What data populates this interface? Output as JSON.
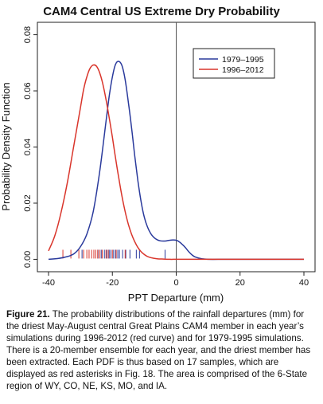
{
  "chart_data": {
    "type": "line",
    "title": "CAM4 Central US Extreme Dry Probability",
    "xlabel": "PPT Departure (mm)",
    "ylabel": "Probability Density Function",
    "xlim": [
      -40,
      40
    ],
    "ylim": [
      -0.003,
      0.083
    ],
    "x_ticks": [
      -40,
      -20,
      0,
      20,
      40
    ],
    "y_ticks": [
      0.0,
      0.02,
      0.04,
      0.06,
      0.08
    ],
    "x_tick_labels": [
      "-40",
      "-20",
      "0",
      "20",
      "40"
    ],
    "y_tick_labels": [
      "0.00",
      "0.02",
      "0.04",
      "0.06",
      "0.08"
    ],
    "vline_x": 0,
    "legend_position": "top-right",
    "series": [
      {
        "name": "1979–1995",
        "color": "#2a3a9c",
        "x": [
          -40,
          -37,
          -34,
          -32,
          -30,
          -28,
          -26,
          -24,
          -22,
          -21,
          -20,
          -19,
          -18,
          -17,
          -16,
          -15,
          -14,
          -13,
          -12,
          -11,
          -10,
          -9,
          -8,
          -7,
          -6,
          -5,
          -4,
          -3,
          -2,
          -1,
          0,
          1,
          2,
          3,
          4,
          5,
          6,
          8,
          10,
          15,
          20,
          30,
          40
        ],
        "y": [
          0.0,
          0.0003,
          0.001,
          0.002,
          0.0045,
          0.009,
          0.017,
          0.031,
          0.049,
          0.058,
          0.065,
          0.0695,
          0.0705,
          0.069,
          0.064,
          0.056,
          0.047,
          0.037,
          0.028,
          0.0205,
          0.015,
          0.0115,
          0.0092,
          0.0078,
          0.007,
          0.0066,
          0.0065,
          0.0066,
          0.0068,
          0.0069,
          0.0068,
          0.0062,
          0.0052,
          0.004,
          0.0026,
          0.0015,
          0.0008,
          0.0002,
          0.0,
          0.0,
          0.0,
          0.0,
          0.0
        ]
      },
      {
        "name": "1996–2012",
        "color": "#d9352b",
        "x": [
          -40,
          -38,
          -36,
          -34,
          -32,
          -30,
          -29,
          -28,
          -27,
          -26,
          -25,
          -24,
          -23,
          -22,
          -21,
          -20,
          -19,
          -18,
          -17,
          -16,
          -15,
          -14,
          -13,
          -12,
          -11,
          -10,
          -9,
          -8,
          -6,
          -4,
          -2,
          0,
          5,
          10,
          20,
          30,
          40
        ],
        "y": [
          0.003,
          0.0085,
          0.017,
          0.028,
          0.041,
          0.054,
          0.0605,
          0.065,
          0.068,
          0.0692,
          0.0688,
          0.0665,
          0.0625,
          0.057,
          0.0505,
          0.0435,
          0.036,
          0.029,
          0.0225,
          0.017,
          0.0125,
          0.009,
          0.0063,
          0.0042,
          0.0027,
          0.0017,
          0.001,
          0.0006,
          0.0002,
          0.0001,
          0.0,
          0.0,
          0.0,
          0.0,
          0.0,
          0.0,
          0.0
        ]
      }
    ],
    "rug": [
      {
        "series": "1979–1995",
        "x": [
          -29.5,
          -24.5,
          -23.5,
          -22.5,
          -21.8,
          -21.0,
          -20.5,
          -19.6,
          -19.0,
          -18.3,
          -17.8,
          -16.8,
          -15.8,
          -14.5,
          -12.5,
          -11.5,
          -3.5
        ]
      },
      {
        "series": "1996–2012",
        "x": [
          -35.5,
          -33.0,
          -30.5,
          -29.0,
          -28.0,
          -27.3,
          -26.5,
          -25.8,
          -25.2,
          -24.6,
          -24.0,
          -23.2,
          -22.0,
          -21.3,
          -20.0,
          -18.8,
          -16.0
        ]
      }
    ]
  },
  "caption": {
    "figure_label": "Figure 21.",
    "text": " The probability distributions of the rainfall departures (mm) for the driest May-August central Great Plains CAM4 member in each year’s simulations during 1996-2012 (red curve) and for 1979-1995 simulations. There is a 20-member ensemble for each year, and the driest member has been extracted. Each PDF is thus based on 17 samples, which are displayed as red asterisks in Fig. 18. The area is comprised of the 6-State region of WY, CO, NE, KS, MO, and IA."
  }
}
